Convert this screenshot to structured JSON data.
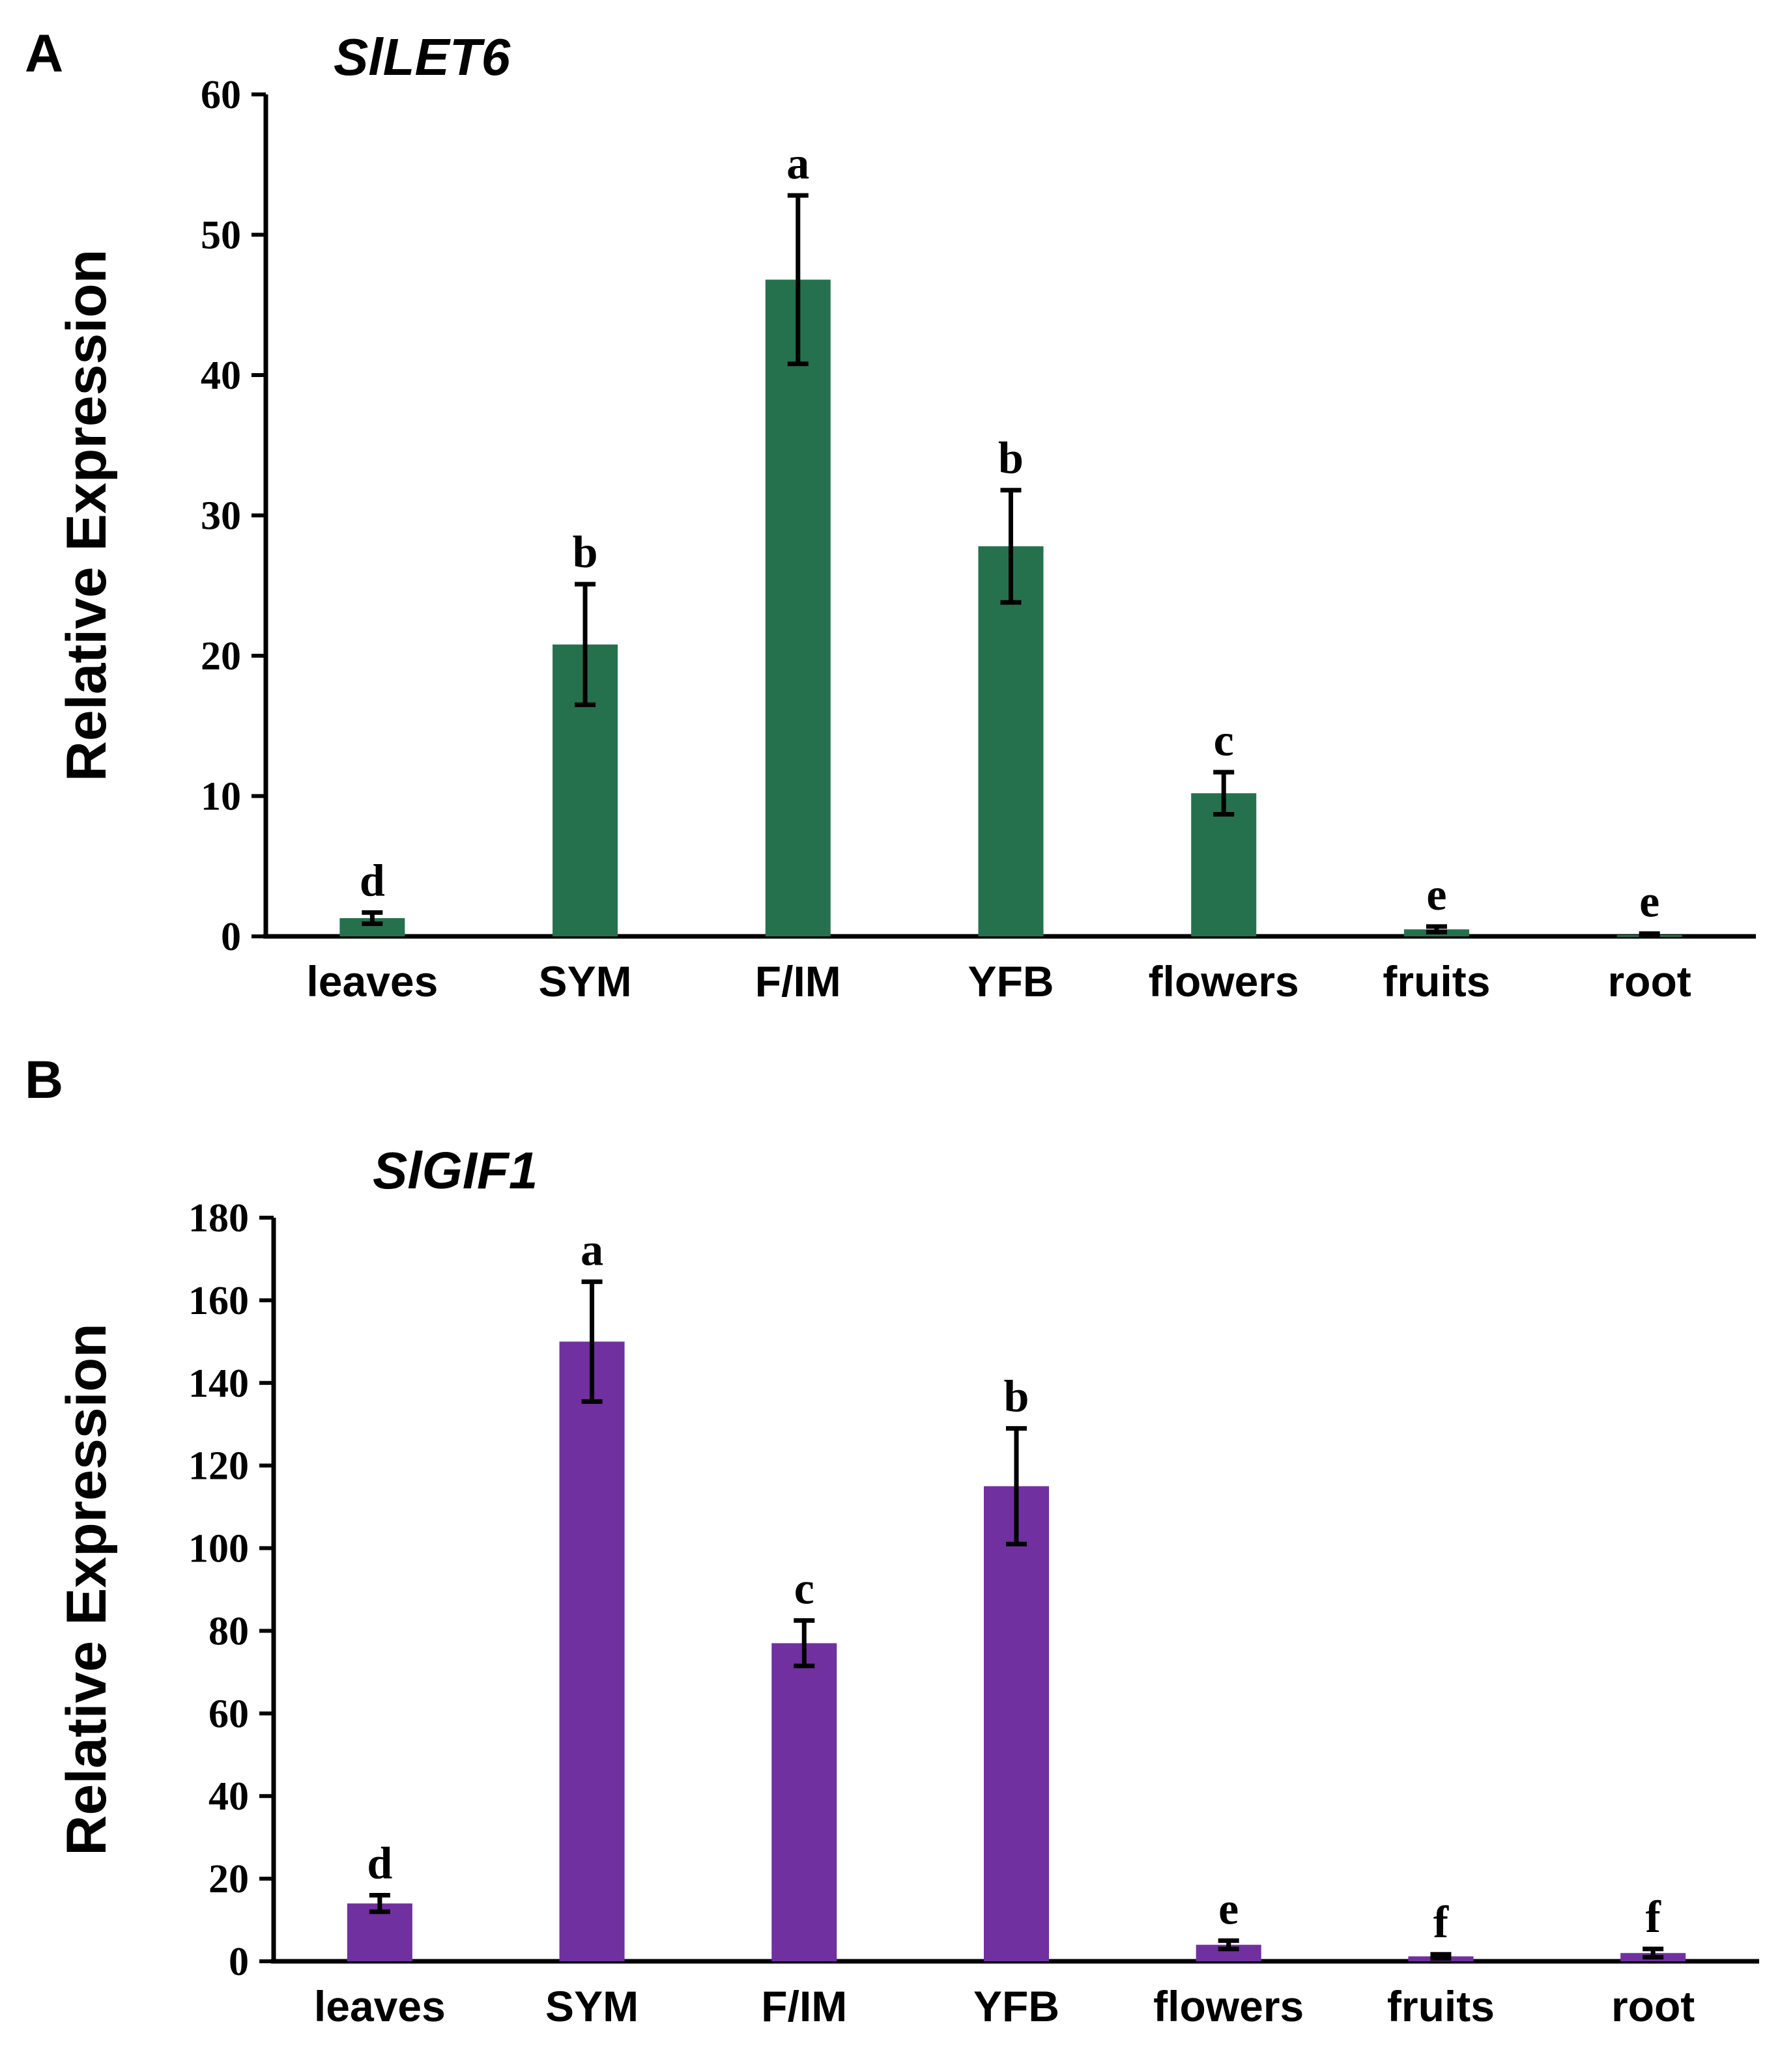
{
  "chart_data": [
    {
      "type": "bar",
      "panel": "A",
      "title": "SlLET6",
      "xlabel": "",
      "ylabel": "Relative Expression",
      "ylim": [
        0,
        60
      ],
      "yticks": [
        0,
        10,
        20,
        30,
        40,
        50,
        60
      ],
      "categories": [
        "leaves",
        "SYM",
        "F/IM",
        "YFB",
        "flowers",
        "fruits",
        "root"
      ],
      "values": [
        1.3,
        20.8,
        46.8,
        27.8,
        10.2,
        0.5,
        0.1
      ],
      "errors": [
        0.4,
        4.3,
        6.0,
        4.0,
        1.5,
        0.2,
        0.1
      ],
      "significance": [
        "d",
        "b",
        "a",
        "b",
        "c",
        "e",
        "e"
      ],
      "bar_color": "#25714E"
    },
    {
      "type": "bar",
      "panel": "B",
      "title": "SlGIF1",
      "xlabel": "",
      "ylabel": "Relative Expression",
      "ylim": [
        0,
        180
      ],
      "yticks": [
        0,
        20,
        40,
        60,
        80,
        100,
        120,
        140,
        160,
        180
      ],
      "categories": [
        "leaves",
        "SYM",
        "F/IM",
        "YFB",
        "flowers",
        "fruits",
        "root"
      ],
      "values": [
        14,
        150,
        77,
        115,
        4,
        1.2,
        2
      ],
      "errors": [
        2,
        14.5,
        5.5,
        14,
        1,
        0.5,
        1
      ],
      "significance": [
        "d",
        "a",
        "c",
        "b",
        "e",
        "f",
        "f"
      ],
      "bar_color": "#7030A0"
    }
  ]
}
